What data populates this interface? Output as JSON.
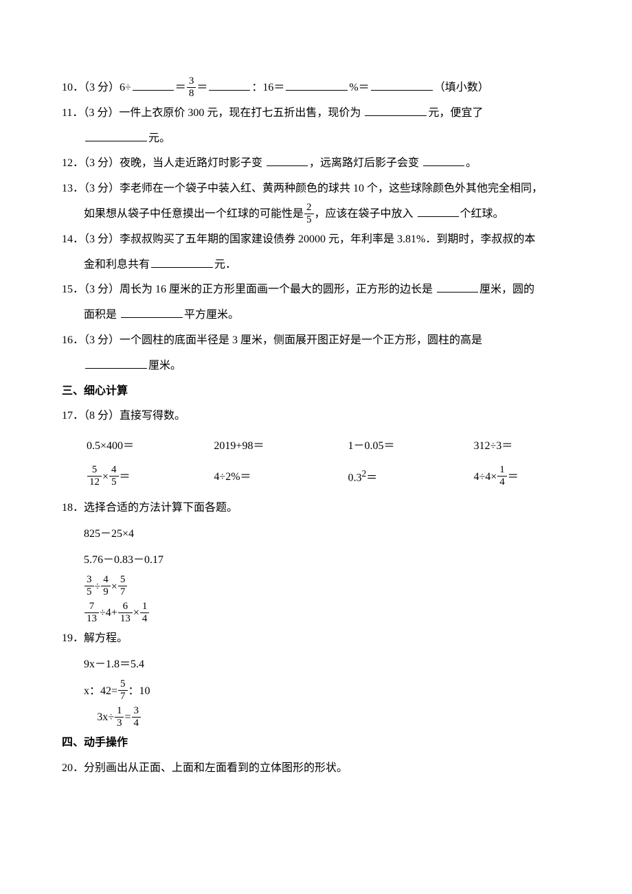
{
  "q10": {
    "prefix": "10．（3 分）6÷",
    "mid1": "＝",
    "frac": {
      "num": "3",
      "den": "8"
    },
    "mid2": "＝",
    "mid3": "：16＝",
    "mid4": "%＝",
    "tail": "（填小数）"
  },
  "q11": {
    "line1_a": "11．（3 分）一件上衣原价 300 元，现在打七五折出售，现价为 ",
    "line1_b": "元，便宜了",
    "line2_b": "元。"
  },
  "q12": {
    "a": "12．（3 分）夜晚，当人走近路灯时影子变 ",
    "b": "，远离路灯后影子会变 ",
    "c": "。"
  },
  "q13": {
    "line1": "13．（3 分）李老师在一个袋子中装入红、黄两种颜色的球共 10 个，这些球除颜色外其他完全相同，",
    "line2_a": "如果想从袋子中任意摸出一个红球的可能性是",
    "frac": {
      "num": "2",
      "den": "5"
    },
    "line2_b": "，应该在袋子中放入 ",
    "line2_c": "个红球。"
  },
  "q14": {
    "line1": "14．（3 分）李叔叔购买了五年期的国家建设债券 20000 元，年利率是 3.81%．到期时，李叔叔的本",
    "line2_a": "金和利息共有",
    "line2_b": "元．"
  },
  "q15": {
    "line1_a": "15．（3 分）周长为 16 厘米的正方形里面画一个最大的圆形，正方形的边长是 ",
    "line1_b": "厘米，圆的",
    "line2_a": "面积是 ",
    "line2_b": "平方厘米。"
  },
  "q16": {
    "line1": "16．（3 分）一个圆柱的底面半径是 3 厘米，侧面展开图正好是一个正方形，圆柱的高是",
    "line2_b": "厘米。"
  },
  "section3": "三、细心计算",
  "q17": {
    "stem": "17．（8 分）直接写得数。",
    "row1": [
      "0.5×400＝",
      "2019+98＝",
      "1－0.05＝",
      "312÷3＝"
    ],
    "row2": {
      "f1": {
        "n1": "5",
        "d1": "12",
        "n2": "4",
        "d2": "5"
      },
      "c2": "4÷2%＝",
      "c3_pre": "0.3",
      "c3_sup": "2",
      "c3_post": "＝",
      "c4_pre": "4÷4×",
      "f4": {
        "num": "1",
        "den": "4"
      },
      "c4_post": "＝"
    }
  },
  "q18": {
    "stem": "18．选择合适的方法计算下面各题。",
    "e1": "825－25×4",
    "e2": "5.76－0.83－0.17",
    "e3": {
      "f1": {
        "num": "3",
        "den": "5"
      },
      "op1": "÷",
      "f2": {
        "num": "4",
        "den": "9"
      },
      "op2": "×",
      "f3": {
        "num": "5",
        "den": "7"
      }
    },
    "e4": {
      "f1": {
        "num": "7",
        "den": "13"
      },
      "op1": "÷4+",
      "f2": {
        "num": "6",
        "den": "13"
      },
      "op2": "×",
      "f3": {
        "num": "1",
        "den": "4"
      }
    }
  },
  "q19": {
    "stem": "19．解方程。",
    "e1": "9x－1.8＝5.4",
    "e2": {
      "pre": "x：42=",
      "f": {
        "num": "5",
        "den": "7"
      },
      "post": "：10"
    },
    "e3": {
      "pre": "3x÷",
      "f1": {
        "num": "1",
        "den": "3"
      },
      "mid": "=",
      "f2": {
        "num": "3",
        "den": "4"
      }
    }
  },
  "section4": "四、动手操作",
  "q20": "20．分别画出从正面、上面和左面看到的立体图形的形状。"
}
